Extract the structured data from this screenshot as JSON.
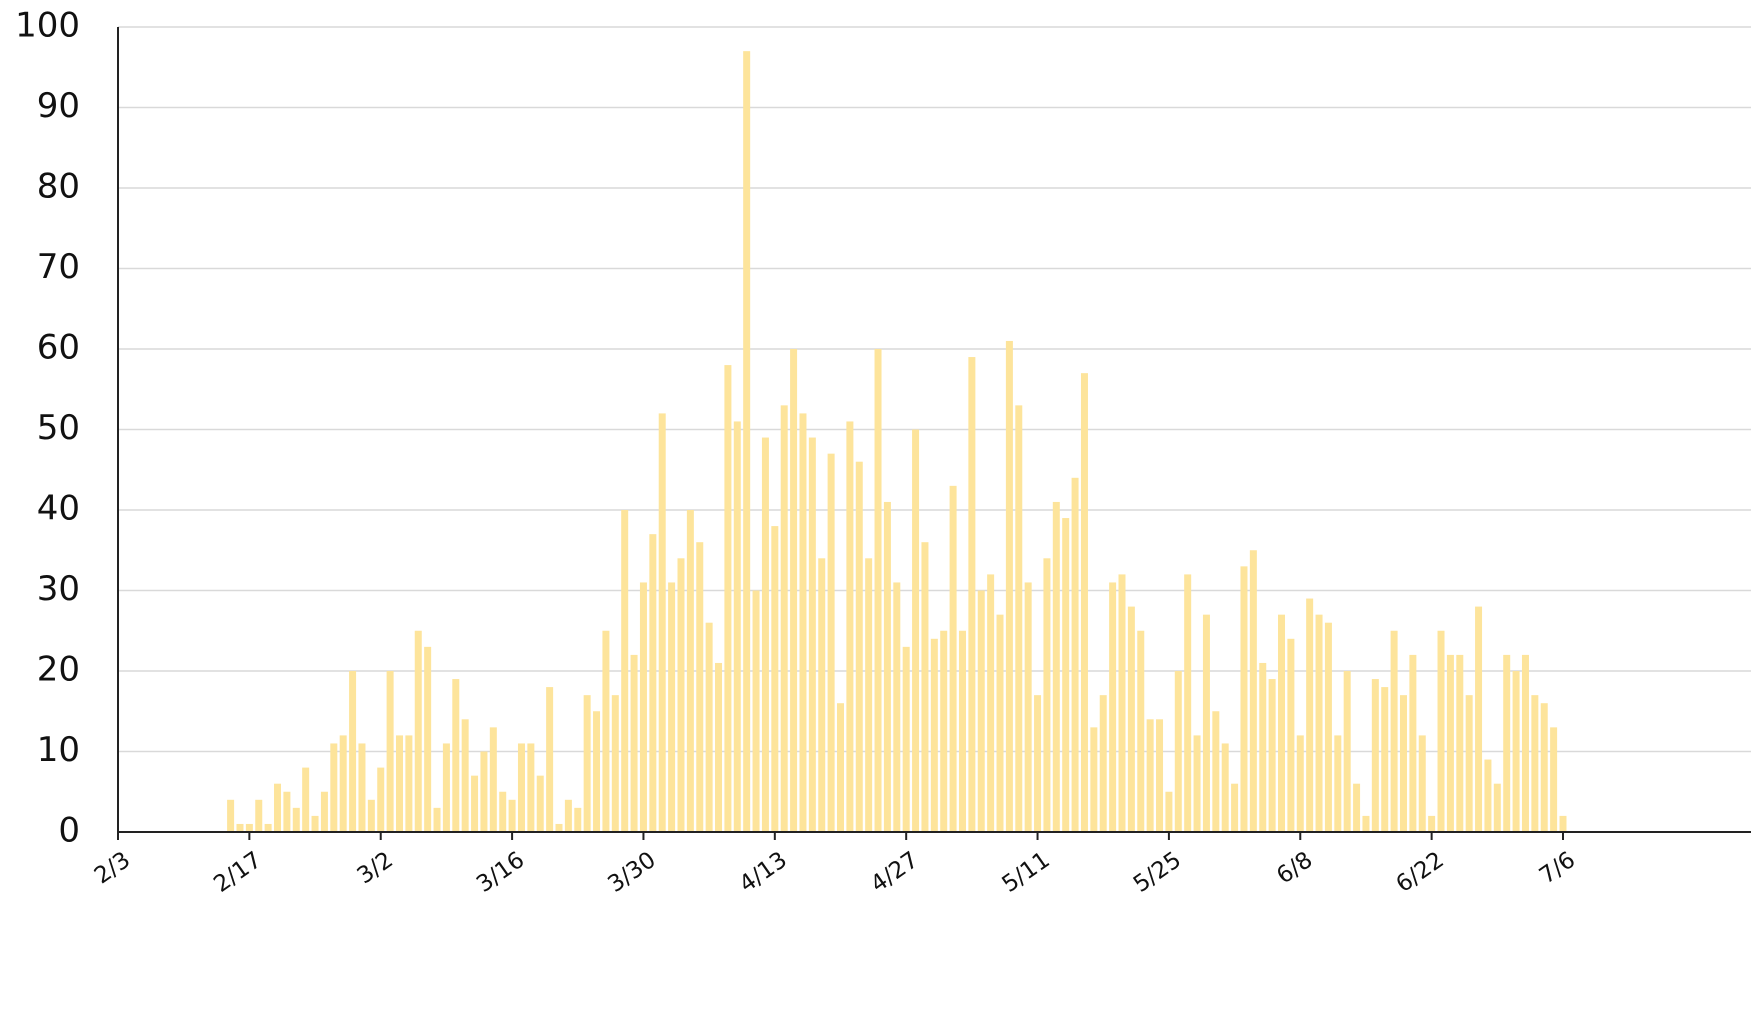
{
  "chart_data": {
    "type": "bar",
    "color": "#fde49b",
    "grid": true,
    "categories": [
      "2/3",
      null,
      null,
      null,
      null,
      null,
      null,
      null,
      null,
      null,
      null,
      null,
      null,
      null,
      "2/17",
      null,
      null,
      null,
      null,
      null,
      null,
      null,
      null,
      null,
      null,
      null,
      null,
      null,
      "3/2",
      null,
      null,
      null,
      null,
      null,
      null,
      null,
      null,
      null,
      null,
      null,
      null,
      null,
      "3/16",
      null,
      null,
      null,
      null,
      null,
      null,
      null,
      null,
      null,
      null,
      null,
      null,
      null,
      "3/30",
      null,
      null,
      null,
      null,
      null,
      null,
      null,
      null,
      null,
      null,
      null,
      null,
      null,
      "4/13",
      null,
      null,
      null,
      null,
      null,
      null,
      null,
      null,
      null,
      null,
      null,
      null,
      null,
      "4/27",
      null,
      null,
      null,
      null,
      null,
      null,
      null,
      null,
      null,
      null,
      null,
      null,
      null,
      "5/11",
      null,
      null,
      null,
      null,
      null,
      null,
      null,
      null,
      null,
      null,
      null,
      null,
      null,
      "5/25",
      null,
      null,
      null,
      null,
      null,
      null,
      null,
      null,
      null,
      null,
      null,
      null,
      null,
      "6/8",
      null,
      null,
      null,
      null,
      null,
      null,
      null,
      null,
      null,
      null,
      null,
      null,
      null,
      "6/22",
      null,
      null,
      null,
      null,
      null,
      null,
      null,
      null,
      null,
      null,
      null,
      null,
      null,
      "7/6"
    ],
    "values": [
      null,
      null,
      null,
      null,
      null,
      null,
      null,
      null,
      null,
      null,
      null,
      null,
      4,
      1,
      1,
      4,
      1,
      6,
      5,
      3,
      8,
      2,
      5,
      11,
      12,
      20,
      11,
      4,
      8,
      20,
      12,
      12,
      25,
      23,
      3,
      11,
      19,
      14,
      7,
      10,
      13,
      5,
      4,
      11,
      11,
      7,
      18,
      1,
      4,
      3,
      17,
      15,
      25,
      17,
      40,
      22,
      31,
      37,
      52,
      31,
      34,
      40,
      36,
      26,
      21,
      58,
      51,
      97,
      30,
      49,
      38,
      53,
      60,
      52,
      49,
      34,
      47,
      16,
      51,
      46,
      34,
      60,
      41,
      31,
      23,
      50,
      36,
      24,
      25,
      43,
      25,
      59,
      30,
      32,
      27,
      61,
      53,
      31,
      17,
      34,
      41,
      39,
      44,
      57,
      13,
      17,
      31,
      32,
      28,
      25,
      14,
      14,
      5,
      20,
      32,
      12,
      27,
      15,
      11,
      6,
      33,
      35,
      21,
      19,
      27,
      24,
      12,
      29,
      27,
      26,
      12,
      20,
      6,
      2,
      19,
      18,
      25,
      17,
      22,
      12,
      2,
      25,
      22,
      22,
      17,
      28,
      9,
      6,
      22,
      20,
      22,
      17,
      16,
      13,
      2
    ],
    "ylim": [
      0,
      100
    ],
    "yticks": [
      0,
      10,
      20,
      30,
      40,
      50,
      60,
      70,
      80,
      90,
      100
    ]
  }
}
